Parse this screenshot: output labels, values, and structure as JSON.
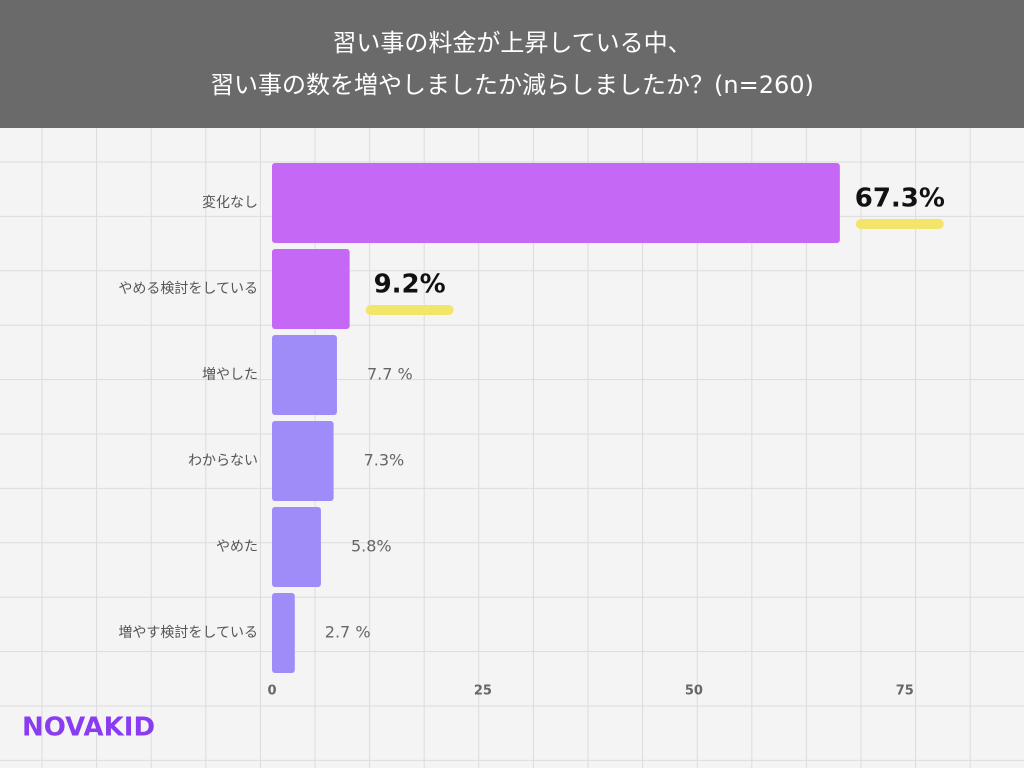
{
  "chart_data": {
    "type": "bar",
    "title": [
      "習い事の料金が上昇している中、",
      "習い事の数を増やしましたか減らしましたか？(n=260)"
    ],
    "categories": [
      "変化なし",
      "やめる検討をしている",
      "増やした",
      "わからない",
      "やめた",
      "増やす検討をしている"
    ],
    "values": [
      67.3,
      9.2,
      7.7,
      7.3,
      5.8,
      2.7
    ],
    "value_labels": [
      "67.3%",
      "9.2%",
      "7.7 %",
      "7.3%",
      "5.8%",
      "2.7 %"
    ],
    "colors": [
      "#c468f5",
      "#c468f5",
      "#a08cf8",
      "#a08cf8",
      "#a08cf8",
      "#a08cf8"
    ],
    "xlim": [
      0,
      80
    ],
    "xticks": [
      0,
      25,
      50,
      75
    ]
  },
  "logo": "NOVAKID"
}
